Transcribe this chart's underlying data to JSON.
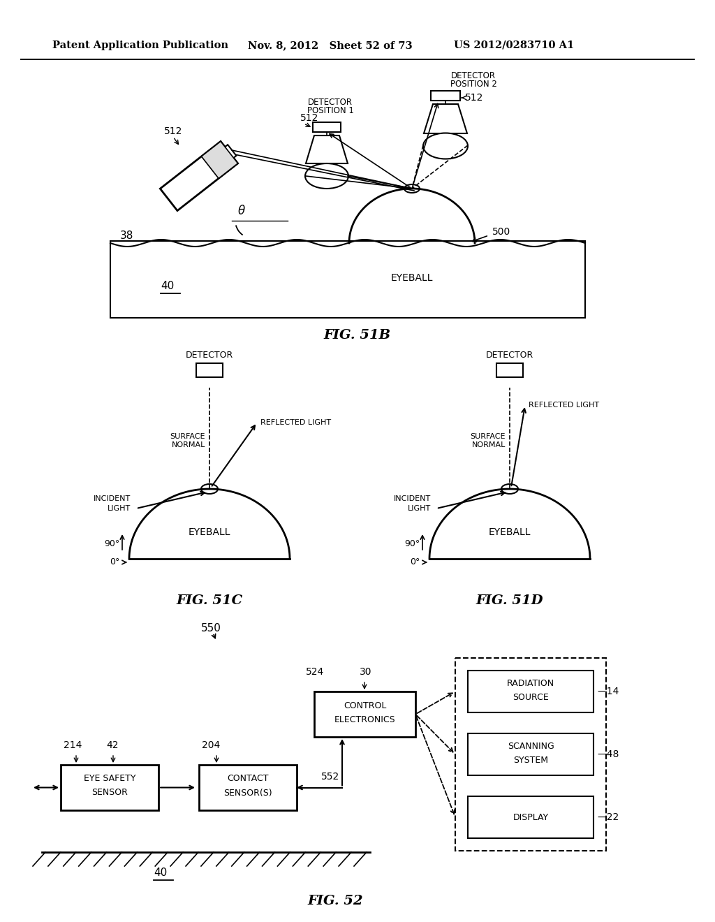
{
  "header_left": "Patent Application Publication",
  "header_mid": "Nov. 8, 2012   Sheet 52 of 73",
  "header_right": "US 2012/0283710 A1",
  "fig51b_caption": "FIG. 51B",
  "fig51c_caption": "FIG. 51C",
  "fig51d_caption": "FIG. 51D",
  "fig52_caption": "FIG. 52",
  "bg_color": "#ffffff",
  "line_color": "#000000"
}
